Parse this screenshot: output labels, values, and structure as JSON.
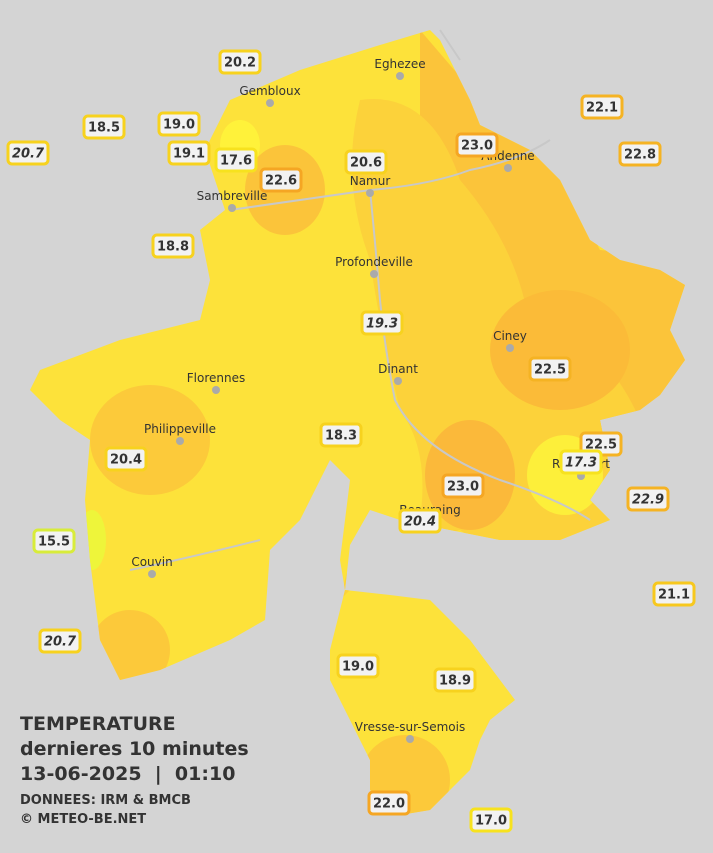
{
  "title": {
    "line1": "TEMPERATURE",
    "line2": "dernieres 10 minutes",
    "line3": "13-06-2025  |  01:10",
    "source": "DONNEES: IRM & BMCB",
    "copyright": "© METEO-BE.NET"
  },
  "cities": [
    "Eghezee",
    "Gembloux",
    "Andenne",
    "Namur",
    "Sambreville",
    "Profondeville",
    "Ciney",
    "Dinant",
    "Florennes",
    "Philippeville",
    "Rochefort",
    "Beauraing",
    "Couvin",
    "Vresse-sur-Semois"
  ],
  "stations": [
    {
      "label": "20.2",
      "color": "#f7d21e",
      "italic": false
    },
    {
      "label": "18.5",
      "color": "#f7d21e",
      "italic": false
    },
    {
      "label": "19.0",
      "color": "#f7d21e",
      "italic": false
    },
    {
      "label": "20.7",
      "color": "#f7d21e",
      "italic": true
    },
    {
      "label": "19.1",
      "color": "#f7d21e",
      "italic": false
    },
    {
      "label": "17.6",
      "color": "#f7e21e",
      "italic": false
    },
    {
      "label": "22.6",
      "color": "#f5a623",
      "italic": false
    },
    {
      "label": "20.6",
      "color": "#f7d21e",
      "italic": false
    },
    {
      "label": "23.0",
      "color": "#f5a623",
      "italic": false
    },
    {
      "label": "22.1",
      "color": "#f5b323",
      "italic": false
    },
    {
      "label": "22.8",
      "color": "#f5b323",
      "italic": false
    },
    {
      "label": "18.8",
      "color": "#f7d21e",
      "italic": false
    },
    {
      "label": "19.3",
      "color": "#f7d21e",
      "italic": true
    },
    {
      "label": "22.5",
      "color": "#f5b323",
      "italic": false
    },
    {
      "label": "18.3",
      "color": "#f7d21e",
      "italic": false
    },
    {
      "label": "20.4",
      "color": "#f7d21e",
      "italic": false
    },
    {
      "label": "22.5",
      "color": "#f5b323",
      "italic": false
    },
    {
      "label": "17.3",
      "color": "#f7e21e",
      "italic": true
    },
    {
      "label": "23.0",
      "color": "#f5a623",
      "italic": false
    },
    {
      "label": "22.9",
      "color": "#f5b323",
      "italic": true
    },
    {
      "label": "20.4",
      "color": "#f7d21e",
      "italic": true
    },
    {
      "label": "15.5",
      "color": "#d8ec3a",
      "italic": false
    },
    {
      "label": "20.7",
      "color": "#f7d21e",
      "italic": true
    },
    {
      "label": "21.1",
      "color": "#f7c81e",
      "italic": false
    },
    {
      "label": "19.0",
      "color": "#f7d21e",
      "italic": false
    },
    {
      "label": "18.9",
      "color": "#f7d21e",
      "italic": false
    },
    {
      "label": "22.0",
      "color": "#f5a623",
      "italic": false
    },
    {
      "label": "17.0",
      "color": "#f7e21e",
      "italic": false
    }
  ]
}
